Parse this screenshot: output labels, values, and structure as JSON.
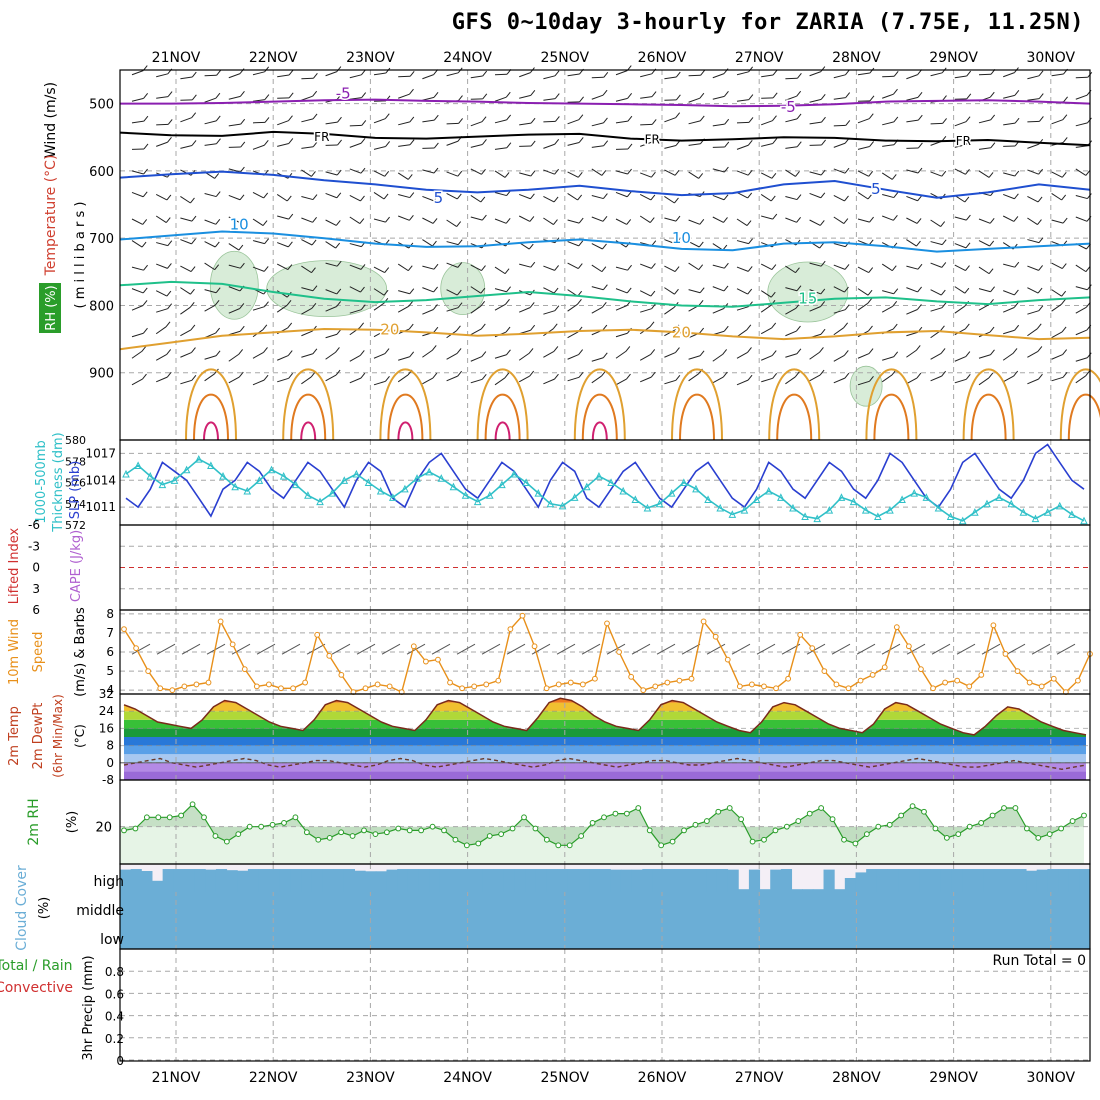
{
  "title": "GFS 0~10day 3-hourly for ZARIA (7.75E, 11.25N)",
  "colors": {
    "fr": "#000000",
    "minus5": "#8a1fb0",
    "plus5": "#1f4fd0",
    "plus10": "#1a8fe0",
    "plus15": "#1fc08a",
    "plus20": "#e0a030",
    "plus25": "#e07a20",
    "plus30": "#d02070",
    "plus35": "#30c080",
    "rh": "#2a9d2a",
    "slp": "#2a3fd0",
    "thick": "#30c0c8",
    "wind": "#e8901a",
    "rh2m": "#2a9d2a",
    "cloud": "#6baed6",
    "li": "#d03030"
  },
  "chart_data": [
    {
      "type": "line",
      "panel": "upper-air",
      "title": "Wind (m/s), Temperature (°C), RH (%)",
      "ylabel": "millibars",
      "ylim": [
        1000,
        450
      ],
      "yticks": [
        500,
        600,
        700,
        800,
        900
      ],
      "ytick_labels": [
        "500",
        "600",
        "700",
        "800",
        "900"
      ],
      "categories": [
        "21NOV",
        "22NOV",
        "23NOV",
        "24NOV",
        "25NOV",
        "26NOV",
        "27NOV",
        "28NOV",
        "29NOV",
        "30NOV"
      ],
      "labels": {
        "wind": "Wind (m/s)",
        "temp": "Temperature (°C)",
        "rh": "RH (%)",
        "mb": "( m i l l i b a r s )"
      },
      "isotherm_labels": [
        {
          "text": "-5",
          "day": 1.72,
          "p": 485,
          "c": "minus5"
        },
        {
          "text": "-5",
          "day": 6.3,
          "p": 505,
          "c": "minus5"
        },
        {
          "text": "FR",
          "day": 1.5,
          "p": 548,
          "c": "fr"
        },
        {
          "text": "FR",
          "day": 4.9,
          "p": 552,
          "c": "fr"
        },
        {
          "text": "FR",
          "day": 8.1,
          "p": 554,
          "c": "fr"
        },
        {
          "text": "5",
          "day": 2.7,
          "p": 640,
          "c": "plus5"
        },
        {
          "text": "5",
          "day": 7.2,
          "p": 627,
          "c": "plus5"
        },
        {
          "text": "10",
          "day": 0.65,
          "p": 680,
          "c": "plus10"
        },
        {
          "text": "10",
          "day": 5.2,
          "p": 700,
          "c": "plus10"
        },
        {
          "text": "15",
          "day": 6.5,
          "p": 790,
          "c": "plus15"
        },
        {
          "text": "20",
          "day": 2.2,
          "p": 836,
          "c": "plus20"
        },
        {
          "text": "20",
          "day": 5.2,
          "p": 840,
          "c": "plus20"
        }
      ],
      "series": [
        {
          "name": "-5",
          "color_key": "minus5",
          "p": [
            500,
            500,
            499,
            497,
            495,
            494,
            496,
            497,
            499,
            500,
            501,
            502,
            504,
            503,
            501,
            497,
            496,
            495,
            497,
            500
          ]
        },
        {
          "name": "FR",
          "color_key": "fr",
          "p": [
            543,
            547,
            548,
            542,
            545,
            551,
            552,
            549,
            546,
            545,
            552,
            555,
            553,
            550,
            551,
            555,
            556,
            554,
            558,
            562
          ]
        },
        {
          "name": "5",
          "color_key": "plus5",
          "p": [
            610,
            605,
            601,
            606,
            614,
            620,
            628,
            632,
            628,
            622,
            630,
            636,
            633,
            620,
            615,
            628,
            640,
            632,
            620,
            628
          ]
        },
        {
          "name": "10",
          "color_key": "plus10",
          "p": [
            702,
            696,
            690,
            693,
            700,
            708,
            713,
            712,
            706,
            702,
            708,
            716,
            718,
            708,
            706,
            712,
            720,
            716,
            712,
            708
          ]
        },
        {
          "name": "15",
          "color_key": "plus15",
          "p": [
            770,
            765,
            768,
            780,
            790,
            795,
            792,
            786,
            780,
            786,
            794,
            800,
            802,
            796,
            790,
            788,
            794,
            798,
            792,
            788
          ]
        },
        {
          "name": "20",
          "color_key": "plus20",
          "p": [
            865,
            855,
            845,
            840,
            835,
            836,
            840,
            845,
            842,
            838,
            836,
            840,
            846,
            850,
            846,
            840,
            838,
            844,
            850,
            848
          ]
        }
      ]
    },
    {
      "type": "line",
      "panel": "thickness-slp",
      "title": "1000-500mb Thickness (dm) / SLP (mb)",
      "ylim_thickness": [
        572,
        580
      ],
      "yticks_thickness": [
        "572",
        "574",
        "576",
        "578",
        "580"
      ],
      "ylim_slp": [
        1009,
        1018.5
      ],
      "yticks_slp": [
        "1011",
        "1014",
        "1017"
      ],
      "labels": {
        "thick": "1000-500mb",
        "thick2": "Thickness (dm)",
        "slp": "SLP (mb)"
      },
      "series": [
        {
          "name": "SLP",
          "color_key": "slp",
          "values": [
            1012,
            1011,
            1013,
            1016,
            1015,
            1014,
            1012,
            1010,
            1013,
            1014,
            1016,
            1015,
            1013,
            1012,
            1014,
            1016,
            1015,
            1013,
            1011,
            1014,
            1016,
            1015,
            1012,
            1011,
            1014,
            1016,
            1017,
            1015,
            1013,
            1012,
            1014,
            1016,
            1015,
            1013,
            1011,
            1014,
            1016,
            1015,
            1012,
            1011,
            1013,
            1015,
            1016,
            1014,
            1012,
            1011,
            1013,
            1015,
            1016,
            1014,
            1012,
            1011,
            1013,
            1016,
            1015,
            1013,
            1012,
            1014,
            1016,
            1015,
            1013,
            1012,
            1014,
            1017,
            1016,
            1014,
            1012,
            1011,
            1013,
            1016,
            1017,
            1015,
            1013,
            1012,
            1014,
            1017,
            1018,
            1016,
            1014,
            1013
          ]
        },
        {
          "name": "Thickness",
          "color_key": "thick",
          "values": [
            576.8,
            577.6,
            576.6,
            575.8,
            576.2,
            577.2,
            578.2,
            577.6,
            576.6,
            575.6,
            575.2,
            576.2,
            577.2,
            576.6,
            575.8,
            574.8,
            574.2,
            575.0,
            576.2,
            576.8,
            576.0,
            575.2,
            574.6,
            575.4,
            576.4,
            577.0,
            576.4,
            575.6,
            574.8,
            574.2,
            574.8,
            575.8,
            576.8,
            576.0,
            575.0,
            574.0,
            573.8,
            574.6,
            575.6,
            576.6,
            576.0,
            575.2,
            574.4,
            573.6,
            574.0,
            575.0,
            576.0,
            575.4,
            574.4,
            573.6,
            573.0,
            573.4,
            574.4,
            575.2,
            574.6,
            573.6,
            572.8,
            572.6,
            573.4,
            574.6,
            574.2,
            573.4,
            572.8,
            573.4,
            574.4,
            575.0,
            574.6,
            573.6,
            572.8,
            572.4,
            573.2,
            574.0,
            574.6,
            574.0,
            573.2,
            572.6,
            573.2,
            573.8,
            573.0,
            572.4
          ]
        }
      ]
    },
    {
      "type": "line",
      "panel": "stability",
      "title": "Lifted Index / CAPE (J/kg)",
      "ylim": [
        6,
        -6
      ],
      "yticks": [
        "-6",
        "-3",
        "0",
        "3",
        "6"
      ],
      "labels": {
        "li": "Lifted Index",
        "cape": "CAPE (J/kg)"
      },
      "series": []
    },
    {
      "type": "line",
      "panel": "10m-wind",
      "title": "10m Wind Speed (m/s) & Barbs",
      "ylim": [
        3.8,
        8.2
      ],
      "yticks": [
        "4",
        "5",
        "6",
        "7",
        "8"
      ],
      "labels": {
        "line1": "10m Wind",
        "line2": "Speed",
        "line3": "(m/s) & Barbs"
      },
      "series": [
        {
          "name": "10m Wind Speed",
          "color_key": "wind",
          "values": [
            7.2,
            6.2,
            5.0,
            4.1,
            4.0,
            4.2,
            4.3,
            4.4,
            7.6,
            6.4,
            5.1,
            4.2,
            4.3,
            4.1,
            4.1,
            4.4,
            6.9,
            5.8,
            4.8,
            3.9,
            4.1,
            4.3,
            4.2,
            3.9,
            6.3,
            5.5,
            5.6,
            4.4,
            4.1,
            4.2,
            4.3,
            4.5,
            7.2,
            7.9,
            6.3,
            4.1,
            4.3,
            4.4,
            4.3,
            4.6,
            7.5,
            6.0,
            4.7,
            4.0,
            4.2,
            4.4,
            4.5,
            4.6,
            7.6,
            6.8,
            5.6,
            4.2,
            4.3,
            4.2,
            4.1,
            4.6,
            6.9,
            6.2,
            5.0,
            4.3,
            4.1,
            4.5,
            4.8,
            5.2,
            7.3,
            6.3,
            5.1,
            4.1,
            4.4,
            4.5,
            4.2,
            4.8,
            7.4,
            5.9,
            5.0,
            4.4,
            4.2,
            4.6,
            3.9,
            4.5,
            5.9
          ]
        }
      ]
    },
    {
      "type": "area",
      "panel": "2m-temp",
      "title": "2m Temp / 2m DewPt (6hr Min/Max) (°C)",
      "ylim": [
        -8,
        32
      ],
      "yticks": [
        "-8",
        "0",
        "8",
        "16",
        "24",
        "32"
      ],
      "labels": {
        "t1": "2m Temp",
        "t2": "2m DewPt",
        "t3": "(6hr Min/Max)",
        "unit": "(°C)"
      },
      "series": [
        {
          "name": "2m Temp",
          "values": [
            27,
            25,
            22,
            19,
            18,
            17,
            16,
            20,
            26,
            29,
            28,
            25,
            22,
            19,
            17,
            16,
            15,
            20,
            27,
            29,
            28,
            25,
            22,
            19,
            17,
            16,
            15,
            20,
            27,
            29,
            28,
            25,
            22,
            19,
            17,
            16,
            15,
            21,
            28,
            30,
            29,
            26,
            22,
            19,
            17,
            16,
            15,
            20,
            27,
            29,
            28,
            25,
            22,
            19,
            17,
            15,
            14,
            19,
            26,
            28,
            27,
            24,
            21,
            18,
            16,
            15,
            14,
            18,
            25,
            28,
            27,
            24,
            21,
            18,
            16,
            14,
            13,
            17,
            22,
            26,
            25,
            22,
            19,
            17,
            15,
            14,
            13
          ]
        },
        {
          "name": "2m DewPt",
          "values": [
            -1,
            0,
            1,
            2,
            0,
            -1,
            -2,
            -1,
            0,
            1,
            2,
            1,
            -1,
            -2,
            -1,
            0,
            1,
            1,
            0,
            -1,
            -2,
            -1,
            1,
            2,
            1,
            -1,
            -2,
            -1,
            0,
            1,
            2,
            1,
            0,
            -1,
            -2,
            -1,
            1,
            2,
            1,
            0,
            -1,
            -2,
            -1,
            0,
            1,
            1,
            0,
            -1,
            -1,
            0,
            1,
            2,
            1,
            0,
            -1,
            -2,
            -1,
            0,
            1,
            1,
            0,
            -1,
            -2,
            -1,
            0,
            1,
            2,
            1,
            0,
            -1,
            -2,
            -2,
            -1,
            0,
            1,
            0,
            -1,
            -2,
            -3,
            -2,
            -1
          ]
        }
      ]
    },
    {
      "type": "area",
      "panel": "2m-rh",
      "title": "2m RH (%)",
      "ylim": [
        0,
        45
      ],
      "yticks": [
        "20"
      ],
      "labels": {
        "rh": "2m RH",
        "unit": "(%)"
      },
      "series": [
        {
          "name": "2m RH",
          "color_key": "rh2m",
          "values": [
            18,
            19,
            25,
            25,
            25,
            26,
            32,
            25,
            15,
            12,
            16,
            20,
            20,
            21,
            22,
            25,
            17,
            13,
            14,
            17,
            15,
            18,
            16,
            17,
            19,
            18,
            18,
            20,
            18,
            13,
            10,
            11,
            15,
            16,
            19,
            25,
            19,
            13,
            10,
            10,
            15,
            22,
            25,
            27,
            27,
            30,
            18,
            10,
            12,
            18,
            21,
            23,
            28,
            30,
            24,
            12,
            13,
            18,
            20,
            23,
            27,
            30,
            24,
            13,
            11,
            16,
            20,
            21,
            26,
            31,
            28,
            19,
            14,
            16,
            20,
            22,
            26,
            30,
            30,
            19,
            14,
            16,
            19,
            23,
            26
          ]
        }
      ]
    },
    {
      "type": "area",
      "panel": "cloud-cover",
      "title": "Cloud Cover (%)",
      "labels": {
        "t": "Cloud Cover",
        "unit": "(%)",
        "high": "high",
        "middle": "middle",
        "low": "low"
      },
      "series": [
        {
          "name": "high",
          "values": [
            80,
            82,
            75,
            40,
            82,
            82,
            82,
            82,
            80,
            82,
            78,
            76,
            82,
            82,
            82,
            82,
            82,
            82,
            82,
            82,
            82,
            82,
            76,
            74,
            74,
            80,
            82,
            82,
            82,
            82,
            82,
            82,
            82,
            82,
            82,
            82,
            82,
            82,
            82,
            82,
            82,
            82,
            82,
            82,
            82,
            82,
            80,
            80,
            80,
            82,
            82,
            82,
            82,
            82,
            82,
            82,
            82,
            80,
            10,
            80,
            10,
            80,
            82,
            10,
            10,
            10,
            80,
            10,
            50,
            70,
            82,
            82,
            82,
            82,
            82,
            82,
            82,
            82,
            82,
            82,
            82,
            82,
            82,
            82,
            82,
            76,
            80,
            82,
            82,
            82,
            82
          ]
        },
        {
          "name": "middle",
          "values": [
            100
          ]
        },
        {
          "name": "low",
          "values": [
            100
          ]
        }
      ]
    },
    {
      "type": "bar",
      "panel": "precip",
      "title": "3hr Precip (mm) Total / Rain Convective",
      "ylim": [
        0,
        1
      ],
      "yticks": [
        "0",
        "0.2",
        "0.4",
        "0.6",
        "0.8"
      ],
      "labels": {
        "total": "Total / Rain",
        "conv": "Convective",
        "unit": "3hr Precip (mm)",
        "run_total": "Run Total = 0"
      },
      "series": [
        {
          "name": "3hr Precip",
          "values": [
            0
          ]
        }
      ]
    }
  ]
}
